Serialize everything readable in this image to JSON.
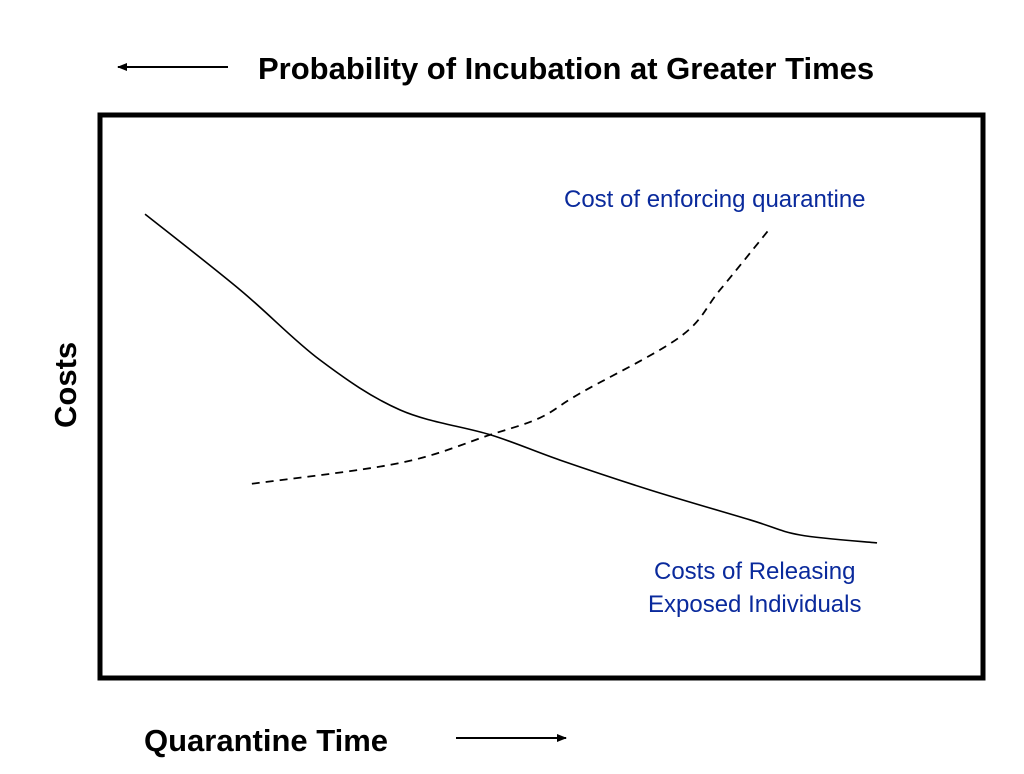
{
  "chart_data": {
    "type": "line",
    "title": "Probability of Incubation at Greater Times",
    "title_arrow": "left",
    "xlabel": "Quarantine Time",
    "xlabel_arrow": "right",
    "ylabel": "Costs",
    "xlim": [
      0,
      100
    ],
    "ylim": [
      0,
      100
    ],
    "grid": false,
    "label_color": "#0a2a9c",
    "series": [
      {
        "name": "Costs of Releasing Exposed Individuals",
        "label_lines": [
          "Costs of Releasing",
          "Exposed Individuals"
        ],
        "style": "solid",
        "x": [
          5.1,
          15.9,
          24.9,
          34.0,
          44.2,
          52.1,
          62.3,
          73.6,
          79.3,
          88.0
        ],
        "y": [
          82.4,
          68.9,
          56.5,
          47.6,
          43.2,
          38.7,
          33.4,
          28.1,
          25.4,
          24.0
        ]
      },
      {
        "name": "Cost of enforcing quarantine",
        "label_lines": [
          "Cost of enforcing quarantine"
        ],
        "style": "dashed",
        "x": [
          17.2,
          34.0,
          44.2,
          49.8,
          54.4,
          65.7,
          70.2,
          75.9
        ],
        "y": [
          34.5,
          38.2,
          43.2,
          46.2,
          50.6,
          60.6,
          68.9,
          79.9
        ]
      }
    ]
  }
}
